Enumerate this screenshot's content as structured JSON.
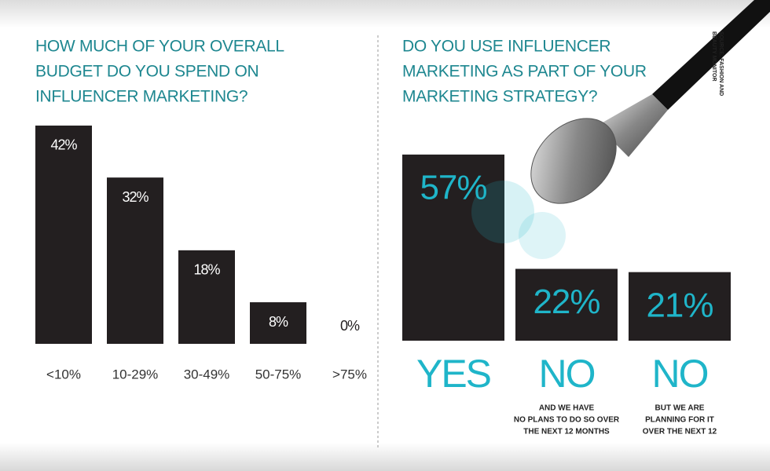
{
  "chart_data": [
    {
      "type": "bar",
      "title": [
        "HOW MUCH OF YOUR OVERALL",
        "BUDGET DO YOU SPEND ON",
        "INFLUENCER MARKETING?"
      ],
      "categories": [
        "<10%",
        "10-29%",
        "30-49%",
        "50-75%",
        ">75%"
      ],
      "values": [
        42,
        32,
        18,
        8,
        0
      ],
      "value_labels": [
        "42%",
        "32%",
        "18%",
        "8%",
        "0%"
      ],
      "color": "#231f20"
    },
    {
      "type": "bar",
      "title": [
        "DO YOU USE INFLUENCER",
        "MARKETING AS PART OF YOUR",
        "MARKETING STRATEGY?"
      ],
      "categories": [
        "YES",
        "NO",
        "NO"
      ],
      "category_notes": [
        null,
        [
          "AND WE HAVE",
          "NO PLANS TO DO SO OVER",
          "THE NEXT 12 MONTHS"
        ],
        [
          "BUT WE ARE",
          "PLANNING FOR IT",
          "OVER THE NEXT 12"
        ]
      ],
      "values": [
        57,
        22,
        21
      ],
      "value_labels": [
        "57%",
        "22%",
        "21%"
      ],
      "color": "#231f20"
    }
  ],
  "source": [
    "SOURCE: FASHION AND",
    "BEAUTY MONITOR"
  ]
}
